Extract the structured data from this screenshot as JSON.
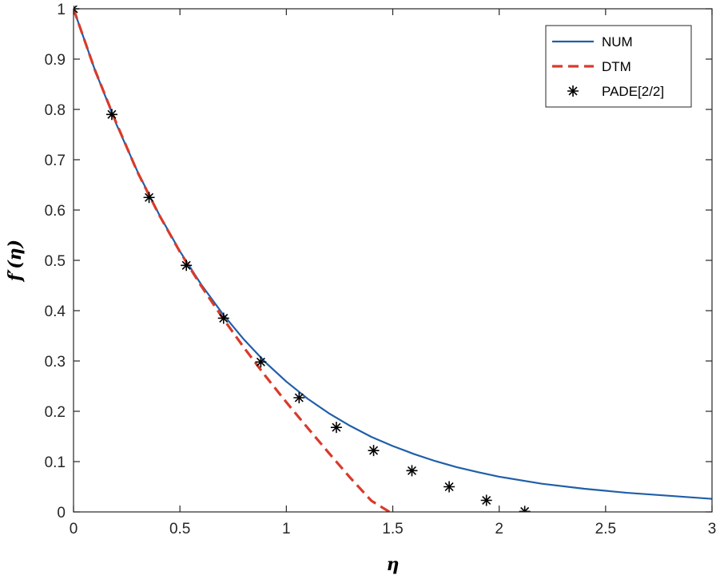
{
  "chart_data": {
    "type": "line",
    "title": "",
    "xlabel": "η",
    "ylabel": "f′(η)",
    "xlim": [
      0,
      3
    ],
    "ylim": [
      0,
      1
    ],
    "xticks": [
      0,
      0.5,
      1,
      1.5,
      2,
      2.5,
      3
    ],
    "yticks": [
      0,
      0.1,
      0.2,
      0.3,
      0.4,
      0.5,
      0.6,
      0.7,
      0.8,
      0.9,
      1
    ],
    "xtick_labels": [
      "0",
      "0.5",
      "1",
      "1.5",
      "2",
      "2.5",
      "3"
    ],
    "ytick_labels": [
      "0",
      "0.1",
      "0.2",
      "0.3",
      "0.4",
      "0.5",
      "0.6",
      "0.7",
      "0.8",
      "0.9",
      "1"
    ],
    "grid": false,
    "box": true,
    "legend_position": "top-right",
    "series": [
      {
        "name": "NUM",
        "style": "solid-line",
        "color": "#1f5fa8",
        "x": [
          0,
          0.1,
          0.2,
          0.3,
          0.4,
          0.5,
          0.6,
          0.7,
          0.8,
          0.9,
          1.0,
          1.1,
          1.2,
          1.3,
          1.4,
          1.5,
          1.6,
          1.7,
          1.8,
          1.9,
          2.0,
          2.2,
          2.4,
          2.6,
          2.8,
          3.0
        ],
        "y": [
          1.0,
          0.879,
          0.772,
          0.677,
          0.593,
          0.518,
          0.452,
          0.394,
          0.343,
          0.298,
          0.259,
          0.225,
          0.196,
          0.171,
          0.149,
          0.131,
          0.115,
          0.101,
          0.089,
          0.079,
          0.07,
          0.056,
          0.046,
          0.038,
          0.032,
          0.026
        ]
      },
      {
        "name": "DTM",
        "style": "dashed-line",
        "color": "#d93a2b",
        "x": [
          0,
          0.1,
          0.2,
          0.3,
          0.4,
          0.5,
          0.6,
          0.7,
          0.8,
          0.9,
          1.0,
          1.1,
          1.2,
          1.3,
          1.4,
          1.5
        ],
        "y": [
          1.0,
          0.879,
          0.774,
          0.676,
          0.592,
          0.517,
          0.449,
          0.386,
          0.327,
          0.271,
          0.218,
          0.167,
          0.117,
          0.068,
          0.022,
          -0.004
        ]
      },
      {
        "name": "PADE[2/2]",
        "style": "star-markers",
        "color": "#000000",
        "x": [
          0.0,
          0.18,
          0.355,
          0.53,
          0.705,
          0.88,
          1.06,
          1.235,
          1.41,
          1.59,
          1.765,
          1.94,
          2.12
        ],
        "y": [
          1.0,
          0.79,
          0.625,
          0.49,
          0.385,
          0.298,
          0.227,
          0.168,
          0.122,
          0.082,
          0.05,
          0.023,
          0.001
        ]
      }
    ]
  }
}
